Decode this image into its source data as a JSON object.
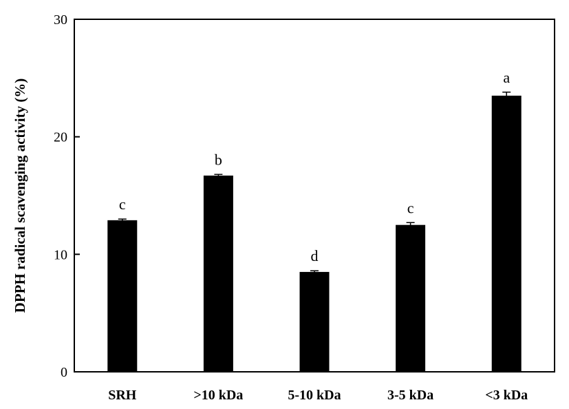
{
  "chart_data": {
    "type": "bar",
    "title": "",
    "xlabel": "",
    "ylabel": "DPPH radical scavenging activity (%)",
    "ylim": [
      0,
      30
    ],
    "yticks": [
      0,
      10,
      20,
      30
    ],
    "grid": false,
    "bar_color": "#000000",
    "categories": [
      "SRH",
      ">10 kDa",
      "5-10 kDa",
      "3-5 kDa",
      "<3 kDa"
    ],
    "values": [
      12.9,
      16.7,
      8.5,
      12.5,
      23.5
    ],
    "errors": [
      0.1,
      0.1,
      0.1,
      0.2,
      0.3
    ],
    "significance": [
      "c",
      "b",
      "d",
      "c",
      "a"
    ]
  }
}
